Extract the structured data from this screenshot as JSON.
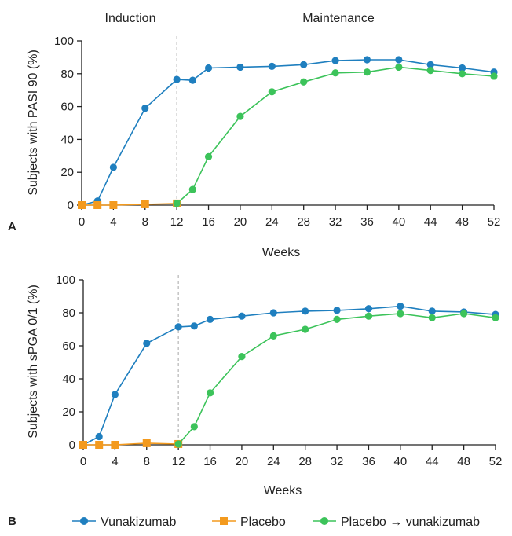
{
  "chart_data": [
    {
      "type": "line",
      "panel": "A",
      "phases": [
        "Induction",
        "Maintenance"
      ],
      "phase_boundary_week": 12,
      "xlabel": "Weeks",
      "ylabel": "Subjects with PASI 90 (%)",
      "xticks": [
        0,
        4,
        8,
        12,
        16,
        20,
        24,
        28,
        32,
        36,
        40,
        44,
        48,
        52
      ],
      "yticks": [
        0,
        20,
        40,
        60,
        80,
        100
      ],
      "xlim": [
        0,
        52
      ],
      "ylim": [
        0,
        100
      ],
      "grid": false,
      "series": [
        {
          "name": "Vunakizumab",
          "color": "#1f7fbf",
          "marker": "circle",
          "x": [
            0,
            2,
            4,
            8,
            12,
            14,
            16,
            20,
            24,
            28,
            32,
            36,
            40,
            44,
            48,
            52
          ],
          "y": [
            0,
            2.5,
            23,
            59,
            76.5,
            76,
            83.5,
            84,
            84.5,
            85.5,
            88,
            88.5,
            88.5,
            85.5,
            83.5,
            81
          ]
        },
        {
          "name": "Placebo",
          "color": "#f39a1e",
          "marker": "square",
          "x": [
            0,
            2,
            4,
            8,
            12
          ],
          "y": [
            0,
            0,
            0,
            0.5,
            1
          ]
        },
        {
          "name": "Placebo → vunakizumab",
          "color": "#3cc35a",
          "marker": "circle",
          "x": [
            12,
            14,
            16,
            20,
            24,
            28,
            32,
            36,
            40,
            44,
            48,
            52
          ],
          "y": [
            1,
            9.5,
            29.5,
            54,
            69,
            75,
            80.5,
            81,
            84,
            82,
            80,
            78.5
          ]
        }
      ]
    },
    {
      "type": "line",
      "panel": "B",
      "phase_boundary_week": 12,
      "xlabel": "Weeks",
      "ylabel": "Subjects with sPGA 0/1 (%)",
      "xticks": [
        0,
        4,
        8,
        12,
        16,
        20,
        24,
        28,
        32,
        36,
        40,
        44,
        48,
        52
      ],
      "yticks": [
        0,
        20,
        40,
        60,
        80,
        100
      ],
      "xlim": [
        0,
        52
      ],
      "ylim": [
        0,
        100
      ],
      "grid": false,
      "series": [
        {
          "name": "Vunakizumab",
          "color": "#1f7fbf",
          "marker": "circle",
          "x": [
            0,
            2,
            4,
            8,
            12,
            14,
            16,
            20,
            24,
            28,
            32,
            36,
            40,
            44,
            48,
            52
          ],
          "y": [
            0,
            5,
            30.5,
            61.5,
            71.5,
            72,
            76,
            78,
            80,
            81,
            81.5,
            82.5,
            84,
            81,
            80.5,
            79
          ]
        },
        {
          "name": "Placebo",
          "color": "#f39a1e",
          "marker": "square",
          "x": [
            0,
            2,
            4,
            8,
            12
          ],
          "y": [
            0,
            0,
            0,
            1,
            0.5
          ]
        },
        {
          "name": "Placebo → vunakizumab",
          "color": "#3cc35a",
          "marker": "circle",
          "x": [
            12,
            14,
            16,
            20,
            24,
            28,
            32,
            36,
            40,
            44,
            48,
            52
          ],
          "y": [
            0.5,
            11,
            31.5,
            53.5,
            66,
            70,
            76,
            78,
            79.5,
            77,
            79.5,
            77
          ]
        }
      ]
    }
  ],
  "legend": {
    "position": "bottom",
    "items": [
      {
        "label": "Vunakizumab",
        "color": "#1f7fbf",
        "marker": "circle"
      },
      {
        "label": "Placebo",
        "color": "#f39a1e",
        "marker": "square"
      },
      {
        "label": "Placebo → vunakizumab",
        "color": "#3cc35a",
        "marker": "circle"
      }
    ]
  }
}
